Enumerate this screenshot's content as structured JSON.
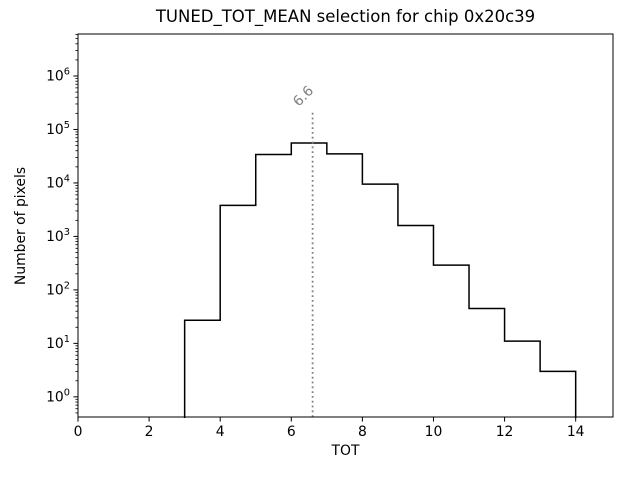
{
  "figure": {
    "title": "TUNED_TOT_MEAN selection for chip 0x20c39",
    "xlabel": "TOT",
    "ylabel": "Number of pixels"
  },
  "chart_data": {
    "type": "bar",
    "subtype": "step-histogram",
    "title": "TUNED_TOT_MEAN selection for chip 0x20c39",
    "xlabel": "TOT",
    "ylabel": "Number of pixels",
    "yscale": "log",
    "grid": false,
    "bin_edges": [
      3,
      4,
      5,
      6,
      7,
      8,
      9,
      10,
      11,
      12,
      13,
      14
    ],
    "counts": [
      27,
      3800,
      34000,
      56000,
      35000,
      9500,
      1600,
      290,
      45,
      11,
      3
    ],
    "xlim": [
      0,
      15.05
    ],
    "ylim": [
      0.42,
      6100000
    ],
    "xticks": [
      0,
      2,
      4,
      6,
      8,
      10,
      12,
      14
    ],
    "ytick_exponents": [
      0,
      1,
      2,
      3,
      4,
      5,
      6
    ],
    "line_color": "#000000",
    "annotation": {
      "x": 6.6,
      "label": "6.6",
      "label_rotation_deg": -45,
      "top_value": 230000,
      "color": "#808080",
      "line_style": "dotted"
    }
  }
}
